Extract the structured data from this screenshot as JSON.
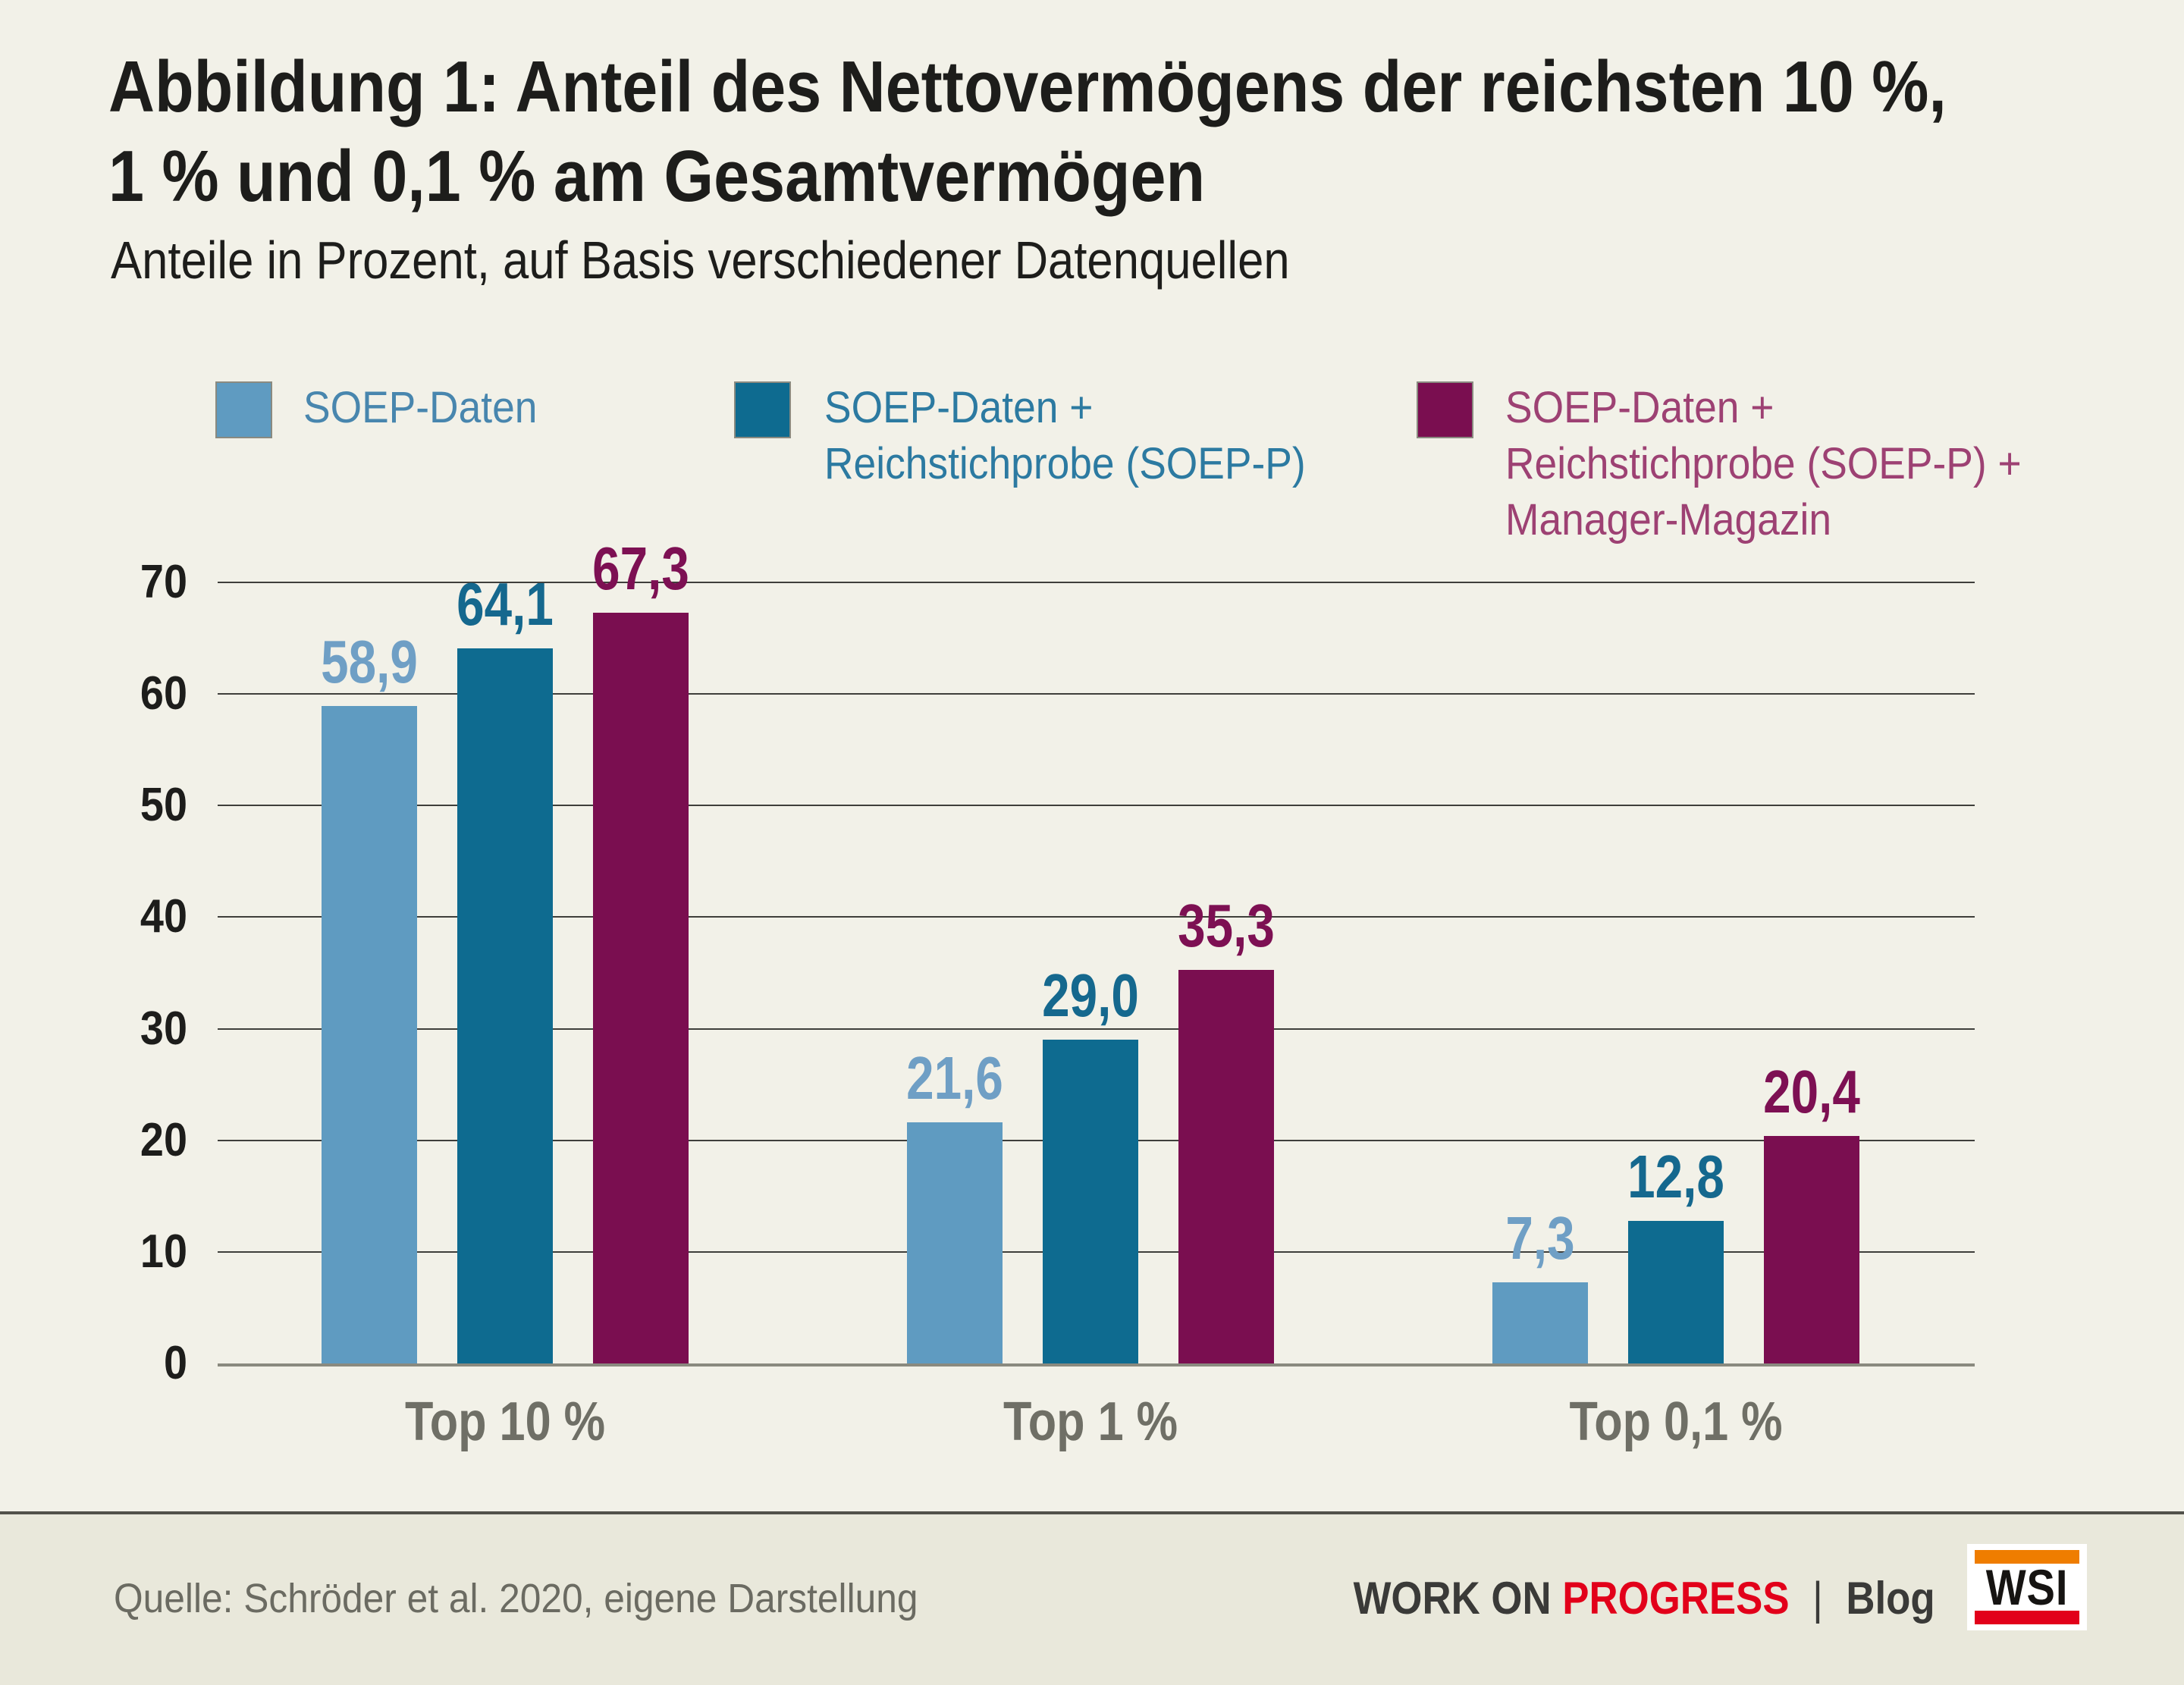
{
  "title": {
    "line1": "Abbildung 1: Anteil des Nettovermögens der reichsten 10 %,",
    "line2": "1 % und 0,1 % am Gesamtvermögen"
  },
  "subtitle": "Anteile in Prozent, auf Basis verschiedener Datenquellen",
  "legend": [
    {
      "lines": [
        "SOEP-Daten"
      ],
      "swatch_color": "#5f9bc1",
      "text_color": "#4886ae"
    },
    {
      "lines": [
        "SOEP-Daten +",
        "Reichstichprobe (SOEP-P)"
      ],
      "swatch_color": "#0e6b90",
      "text_color": "#2c7aa1"
    },
    {
      "lines": [
        "SOEP-Daten +",
        "Reichstichprobe (SOEP-P) +",
        "Manager-Magazin"
      ],
      "swatch_color": "#7a0e50",
      "text_color": "#9d4173"
    }
  ],
  "chart_data": {
    "type": "bar",
    "title": "Abbildung 1: Anteil des Nettovermögens der reichsten 10 %, 1 % und 0,1 % am Gesamtvermögen",
    "subtitle": "Anteile in Prozent, auf Basis verschiedener Datenquellen",
    "categories": [
      "Top 10 %",
      "Top 1 %",
      "Top 0,1 %"
    ],
    "series": [
      {
        "name": "SOEP-Daten",
        "values": [
          58.9,
          21.6,
          7.3
        ],
        "value_labels": [
          "58,9",
          "21,6",
          "7,3"
        ],
        "color": "#5f9bc1",
        "label_color": "#6f9fc5"
      },
      {
        "name": "SOEP-Daten + Reichstichprobe (SOEP-P)",
        "values": [
          64.1,
          29.0,
          12.8
        ],
        "value_labels": [
          "64,1",
          "29,0",
          "12,8"
        ],
        "color": "#0e6b90",
        "label_color": "#15688e"
      },
      {
        "name": "SOEP-Daten + Reichstichprobe (SOEP-P) + Manager-Magazin",
        "values": [
          67.3,
          35.3,
          20.4
        ],
        "value_labels": [
          "67,3",
          "35,3",
          "20,4"
        ],
        "color": "#7a0e50",
        "label_color": "#7d1053"
      }
    ],
    "ylim": [
      0,
      70
    ],
    "yticks": [
      0,
      10,
      20,
      30,
      40,
      50,
      60,
      70
    ],
    "grid": true,
    "legend_position": "top",
    "ylabel": "",
    "xlabel": ""
  },
  "footer": {
    "source": "Quelle: Schröder et al. 2020, eigene Darstellung",
    "brand": {
      "work_on": "WORK ON",
      "progress": "PROGRESS",
      "separator": "|",
      "blog": "Blog"
    },
    "logo": {
      "text": "WSI",
      "top_bar_color": "#ef7d00",
      "bottom_bar_color": "#e2001a"
    }
  },
  "colors": {
    "background": "#f2f1e8",
    "footer_background": "#e9e8db",
    "text_dark": "#1d1d1b",
    "category_label": "#6f6f66",
    "source_text": "#6b6b62",
    "gridline": "#3f3f3b",
    "baseline": "#8a8a7f",
    "brand_red": "#e2001a"
  }
}
